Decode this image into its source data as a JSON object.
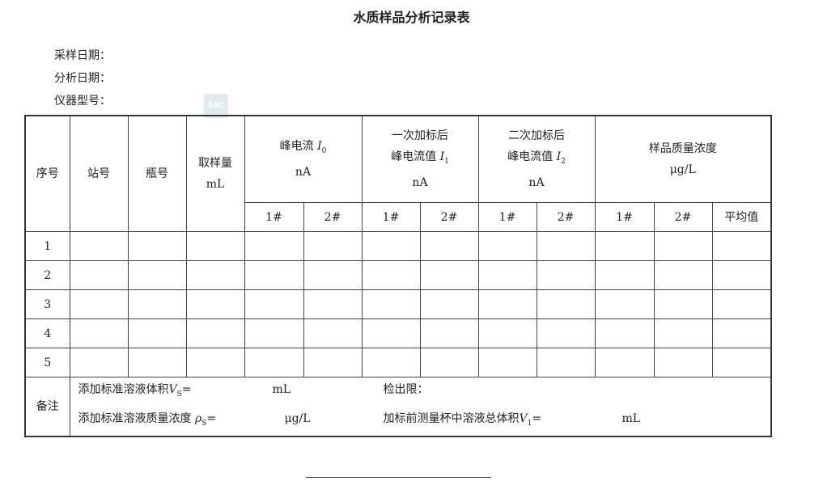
{
  "title": "水质样品分析记录表",
  "meta": {
    "sampling_date": "采样日期：",
    "analysis_date": "分析日期：",
    "instrument_model": "仪器型号："
  },
  "watermark": "SAC",
  "headers": {
    "seq": "序号",
    "station": "站号",
    "bottle": "瓶号",
    "volume": "取样量",
    "volume_unit": "mL",
    "i0_label": "峰电流",
    "i0_sym": "I",
    "i0_sub": "0",
    "unit_na": "nA",
    "i1_line1": "一次加标后",
    "i1_line2": "峰电流值",
    "i1_sym": "I",
    "i1_sub": "1",
    "i2_line1": "二次加标后",
    "i2_line2": "峰电流值",
    "i2_sym": "I",
    "i2_sub": "2",
    "conc": "样品质量浓度",
    "conc_unit": "μg/L",
    "sub1": "1#",
    "sub2": "2#",
    "avg": "平均值"
  },
  "rows": [
    "1",
    "2",
    "3",
    "4",
    "5"
  ],
  "remarks": {
    "label": "备注",
    "vs_label": "添加标准溶液体积",
    "vs_sym": "V",
    "vs_sub": "S",
    "eq": "=",
    "ml": "mL",
    "detection_limit": "检出限：",
    "rho_label": "添加标准溶液质量浓度",
    "rho_sym": "ρ",
    "rho_sub": "S",
    "ugl": "μg/L",
    "v1_label": "加标前测量杯中溶液总体积",
    "v1_sym": "V",
    "v1_sub": "1"
  }
}
